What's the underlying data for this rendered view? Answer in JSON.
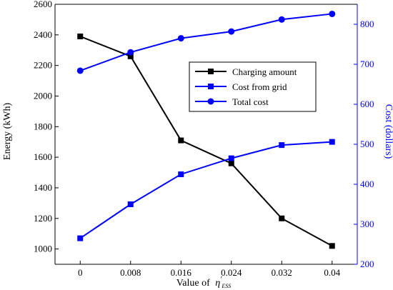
{
  "chart_data": {
    "type": "line",
    "x": [
      0,
      0.008,
      0.016,
      0.024,
      0.032,
      0.04
    ],
    "x_tick_labels": [
      "0",
      "0.008",
      "0.016",
      "0.024",
      "0.032",
      "0.04"
    ],
    "xlabel_prefix": "Value of",
    "xlabel_symbol": "η",
    "xlabel_prime": "′",
    "xlabel_sub": "ESS",
    "ylabel_left": "Energy (kWh)",
    "ylabel_right": "Cost (dollars)",
    "ylim_left": [
      900,
      2600
    ],
    "ylim_right": [
      200,
      850
    ],
    "yticks_left": [
      1000,
      1200,
      1400,
      1600,
      1800,
      2000,
      2200,
      2400,
      2600
    ],
    "yticks_right": [
      200,
      300,
      400,
      500,
      600,
      700,
      800
    ],
    "legend_position": "center-right",
    "grid": false,
    "series": [
      {
        "name": "Charging amount",
        "axis": "left",
        "marker": "square",
        "color": "#000000",
        "values": [
          2390,
          2260,
          1710,
          1560,
          1200,
          1020
        ]
      },
      {
        "name": "Cost from grid",
        "axis": "right",
        "marker": "square",
        "color": "#0000ff",
        "values": [
          265,
          350,
          425,
          465,
          498,
          506
        ]
      },
      {
        "name": "Total cost",
        "axis": "right",
        "marker": "circle",
        "color": "#0000ff",
        "values": [
          684,
          730,
          765,
          782,
          812,
          826
        ]
      }
    ]
  }
}
